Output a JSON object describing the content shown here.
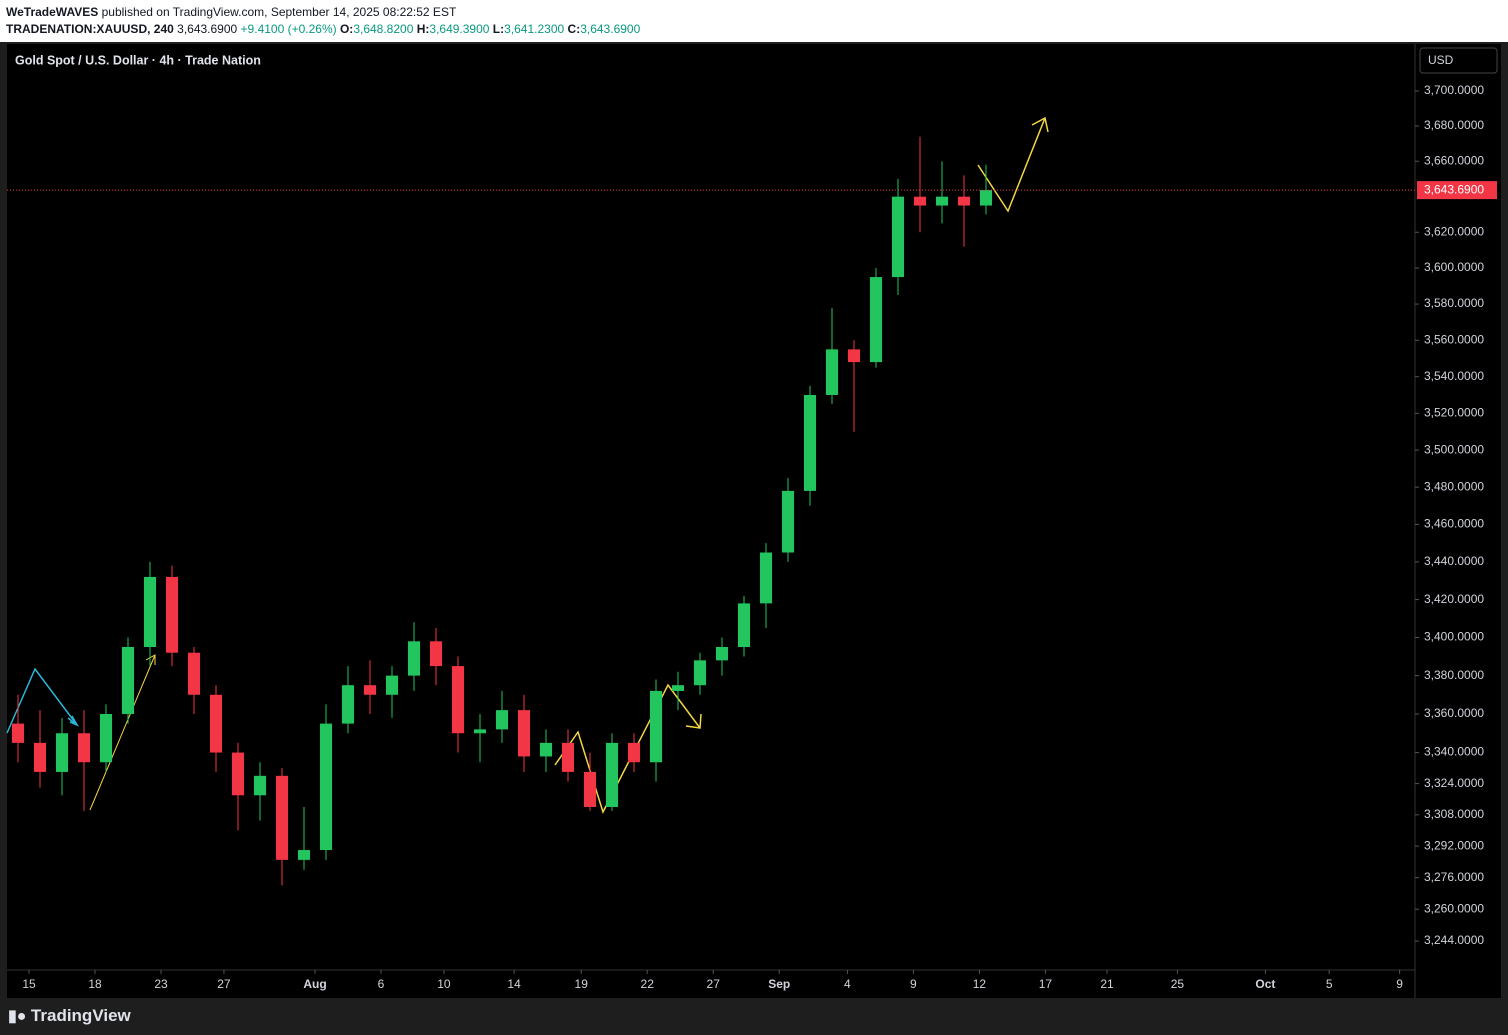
{
  "header": {
    "author": "WeTradeWAVES",
    "published": "published on TradingView.com, September 14, 2025 08:22:52 EST",
    "symbol": "TRADENATION:XAUUSD, 240",
    "price": "3,643.6900",
    "change": "+9.4100 (+0.26%)",
    "ohlc": [
      {
        "key": "O:",
        "value": "3,648.8200"
      },
      {
        "key": "H:",
        "value": "3,649.3900"
      },
      {
        "key": "L:",
        "value": "3,641.2300"
      },
      {
        "key": "C:",
        "value": "3,643.6900"
      }
    ]
  },
  "chart_data": {
    "type": "candlestick",
    "title": "Gold Spot / U.S. Dollar · 4h · Trade Nation",
    "currency": "USD",
    "x": [
      0.5,
      1.5,
      2.5,
      3.5,
      4.5,
      5.5,
      6.5,
      7.5,
      8.5,
      9.5,
      10.5,
      11.5,
      12.5,
      13.5,
      14.5,
      15.5,
      16.5,
      17.5,
      18.5,
      19.5,
      20.5,
      21.5,
      22.5,
      23.5,
      24.5,
      25.5,
      26.5,
      27.5,
      28.5,
      29.5,
      30.5,
      31.5,
      32.5,
      33.5,
      34.5,
      35.5,
      36.5,
      37.5,
      38.5,
      39.5,
      40.5,
      41.5,
      42.5,
      43.5,
      44.5
    ],
    "open": [
      3355,
      3345,
      3330,
      3350,
      3335,
      3360,
      3395,
      3432,
      3392,
      3370,
      3340,
      3318,
      3328,
      3285,
      3290,
      3355,
      3375,
      3370,
      3380,
      3398,
      3385,
      3350,
      3352,
      3362,
      3338,
      3345,
      3330,
      3312,
      3345,
      3335,
      3372,
      3375,
      3388,
      3395,
      3418,
      3445,
      3478,
      3530,
      3555,
      3548,
      3595,
      3640,
      3635,
      3640,
      3635
    ],
    "high": [
      3370,
      3362,
      3358,
      3362,
      3365,
      3400,
      3440,
      3438,
      3395,
      3375,
      3345,
      3335,
      3332,
      3312,
      3365,
      3385,
      3388,
      3385,
      3408,
      3405,
      3390,
      3360,
      3372,
      3370,
      3352,
      3352,
      3340,
      3350,
      3350,
      3378,
      3382,
      3392,
      3400,
      3422,
      3450,
      3485,
      3535,
      3578,
      3560,
      3600,
      3650,
      3674,
      3660,
      3652,
      3658
    ],
    "low": [
      3335,
      3322,
      3318,
      3310,
      3330,
      3355,
      3385,
      3385,
      3360,
      3330,
      3300,
      3305,
      3272,
      3280,
      3285,
      3350,
      3360,
      3358,
      3372,
      3375,
      3340,
      3335,
      3345,
      3330,
      3330,
      3325,
      3310,
      3310,
      3330,
      3325,
      3362,
      3370,
      3380,
      3390,
      3405,
      3440,
      3470,
      3525,
      3510,
      3545,
      3585,
      3620,
      3625,
      3612,
      3630
    ],
    "close": [
      3345,
      3330,
      3350,
      3335,
      3360,
      3395,
      3432,
      3392,
      3370,
      3340,
      3318,
      3328,
      3285,
      3290,
      3355,
      3375,
      3370,
      3380,
      3398,
      3385,
      3350,
      3352,
      3362,
      3338,
      3345,
      3330,
      3312,
      3345,
      3335,
      3372,
      3375,
      3388,
      3395,
      3418,
      3445,
      3478,
      3530,
      3555,
      3548,
      3595,
      3640,
      3635,
      3640,
      3635,
      3643.69
    ],
    "up_color": "#22c55e",
    "down_color": "#f23645",
    "xlim": [
      0,
      64
    ],
    "xticks": [
      {
        "value": 1.0,
        "label": "15"
      },
      {
        "value": 4.0,
        "label": "18"
      },
      {
        "value": 7.0,
        "label": "23"
      },
      {
        "value": 9.86,
        "label": "27"
      },
      {
        "value": 14.0,
        "label": "Aug"
      },
      {
        "value": 17.0,
        "label": "6"
      },
      {
        "value": 19.86,
        "label": "10"
      },
      {
        "value": 23.05,
        "label": "14"
      },
      {
        "value": 26.1,
        "label": "19"
      },
      {
        "value": 29.1,
        "label": "22"
      },
      {
        "value": 32.1,
        "label": "27"
      },
      {
        "value": 35.1,
        "label": "Sep"
      },
      {
        "value": 38.2,
        "label": "4"
      },
      {
        "value": 41.2,
        "label": "9"
      },
      {
        "value": 44.2,
        "label": "12"
      },
      {
        "value": 47.2,
        "label": "17"
      },
      {
        "value": 50.0,
        "label": "21"
      },
      {
        "value": 53.2,
        "label": "25"
      },
      {
        "value": 57.2,
        "label": "Oct"
      },
      {
        "value": 60.1,
        "label": "5"
      },
      {
        "value": 63.3,
        "label": "9"
      }
    ],
    "ylim": [
      3229.5,
      3727
    ],
    "log_scale": true,
    "yticks": [
      {
        "value": 3700,
        "label": "3,700.0000"
      },
      {
        "value": 3680,
        "label": "3,680.0000"
      },
      {
        "value": 3660,
        "label": "3,660.0000"
      },
      {
        "value": 3620,
        "label": "3,620.0000"
      },
      {
        "value": 3600,
        "label": "3,600.0000"
      },
      {
        "value": 3580,
        "label": "3,580.0000"
      },
      {
        "value": 3560,
        "label": "3,560.0000"
      },
      {
        "value": 3540,
        "label": "3,540.0000"
      },
      {
        "value": 3520,
        "label": "3,520.0000"
      },
      {
        "value": 3500,
        "label": "3,500.0000"
      },
      {
        "value": 3480,
        "label": "3,480.0000"
      },
      {
        "value": 3460,
        "label": "3,460.0000"
      },
      {
        "value": 3440,
        "label": "3,440.0000"
      },
      {
        "value": 3420,
        "label": "3,420.0000"
      },
      {
        "value": 3400,
        "label": "3,400.0000"
      },
      {
        "value": 3380,
        "label": "3,380.0000"
      },
      {
        "value": 3360,
        "label": "3,360.0000"
      },
      {
        "value": 3340,
        "label": "3,340.0000"
      },
      {
        "value": 3324,
        "label": "3,324.0000"
      },
      {
        "value": 3308,
        "label": "3,308.0000"
      },
      {
        "value": 3292,
        "label": "3,292.0000"
      },
      {
        "value": 3276,
        "label": "3,276.0000"
      },
      {
        "value": 3260,
        "label": "3,260.0000"
      },
      {
        "value": 3244,
        "label": "3,244.0000"
      }
    ],
    "last_price": {
      "value": 3643.69,
      "label": "3,643.6900"
    }
  },
  "footer": {
    "brand": "TradingView"
  }
}
